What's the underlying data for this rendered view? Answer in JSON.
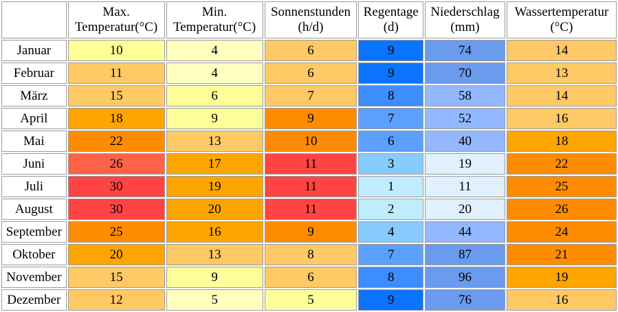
{
  "headers": [
    {
      "line1": "",
      "line2": ""
    },
    {
      "line1": "Max.",
      "line2": "Temperatur(°C)"
    },
    {
      "line1": "Min.",
      "line2": "Temperatur(°C)"
    },
    {
      "line1": "Sonnenstunden",
      "line2": "(h/d)"
    },
    {
      "line1": "Regentage",
      "line2": "(d)"
    },
    {
      "line1": "Niederschlag",
      "line2": "(mm)"
    },
    {
      "line1": "Wassertemperatur",
      "line2": "(°C)"
    }
  ],
  "rows": [
    {
      "month": "Januar",
      "max": "10",
      "min": "4",
      "sun": "6",
      "rain_days": "9",
      "precip": "74",
      "water": "14"
    },
    {
      "month": "Februar",
      "max": "11",
      "min": "4",
      "sun": "6",
      "rain_days": "9",
      "precip": "70",
      "water": "13"
    },
    {
      "month": "März",
      "max": "15",
      "min": "6",
      "sun": "7",
      "rain_days": "8",
      "precip": "58",
      "water": "14"
    },
    {
      "month": "April",
      "max": "18",
      "min": "9",
      "sun": "9",
      "rain_days": "7",
      "precip": "52",
      "water": "16"
    },
    {
      "month": "Mai",
      "max": "22",
      "min": "13",
      "sun": "10",
      "rain_days": "6",
      "precip": "40",
      "water": "18"
    },
    {
      "month": "Juni",
      "max": "26",
      "min": "17",
      "sun": "11",
      "rain_days": "3",
      "precip": "19",
      "water": "22"
    },
    {
      "month": "Juli",
      "max": "30",
      "min": "19",
      "sun": "11",
      "rain_days": "1",
      "precip": "11",
      "water": "25"
    },
    {
      "month": "August",
      "max": "30",
      "min": "20",
      "sun": "11",
      "rain_days": "2",
      "precip": "20",
      "water": "26"
    },
    {
      "month": "September",
      "max": "25",
      "min": "16",
      "sun": "9",
      "rain_days": "4",
      "precip": "44",
      "water": "24"
    },
    {
      "month": "Oktober",
      "max": "20",
      "min": "13",
      "sun": "8",
      "rain_days": "7",
      "precip": "87",
      "water": "21"
    },
    {
      "month": "November",
      "max": "15",
      "min": "9",
      "sun": "6",
      "rain_days": "8",
      "precip": "96",
      "water": "19"
    },
    {
      "month": "Dezember",
      "max": "12",
      "min": "5",
      "sun": "5",
      "rain_days": "9",
      "precip": "76",
      "water": "16"
    }
  ],
  "colors": {
    "max": [
      "#ffff99",
      "#ffc966",
      "#ffc966",
      "#ffa500",
      "#ff8c00",
      "#ff6347",
      "#ff4444",
      "#ff4444",
      "#ff8c00",
      "#ffa500",
      "#ffc966",
      "#ffc966"
    ],
    "min": [
      "#ffffc0",
      "#ffffc0",
      "#ffff99",
      "#ffff99",
      "#ffc966",
      "#ffa500",
      "#ffa500",
      "#ffa500",
      "#ffa500",
      "#ffc966",
      "#ffff99",
      "#ffffc0"
    ],
    "sun": [
      "#ffc966",
      "#ffc966",
      "#ffc966",
      "#ff8c00",
      "#ff8c00",
      "#ff4444",
      "#ff4444",
      "#ff4444",
      "#ff8c00",
      "#ffc966",
      "#ffc966",
      "#ffff99"
    ],
    "rain_days": [
      "#0a74ff",
      "#0a74ff",
      "#3d8dff",
      "#5ba0ff",
      "#5ba0ff",
      "#87cbff",
      "#c0ecff",
      "#c0ecff",
      "#87cbff",
      "#5ba0ff",
      "#3d8dff",
      "#0a74ff"
    ],
    "precip": [
      "#6b9bef",
      "#6b9bef",
      "#94b8ff",
      "#94b8ff",
      "#94b8ff",
      "#e0f0ff",
      "#e0f0ff",
      "#e0f0ff",
      "#94b8ff",
      "#6b9bef",
      "#6b9bef",
      "#6b9bef"
    ],
    "water": [
      "#ffc966",
      "#ffc966",
      "#ffc966",
      "#ffc966",
      "#ffa500",
      "#ff8c00",
      "#ff8c00",
      "#ff8c00",
      "#ff8c00",
      "#ff8c00",
      "#ffa500",
      "#ffc966"
    ]
  }
}
